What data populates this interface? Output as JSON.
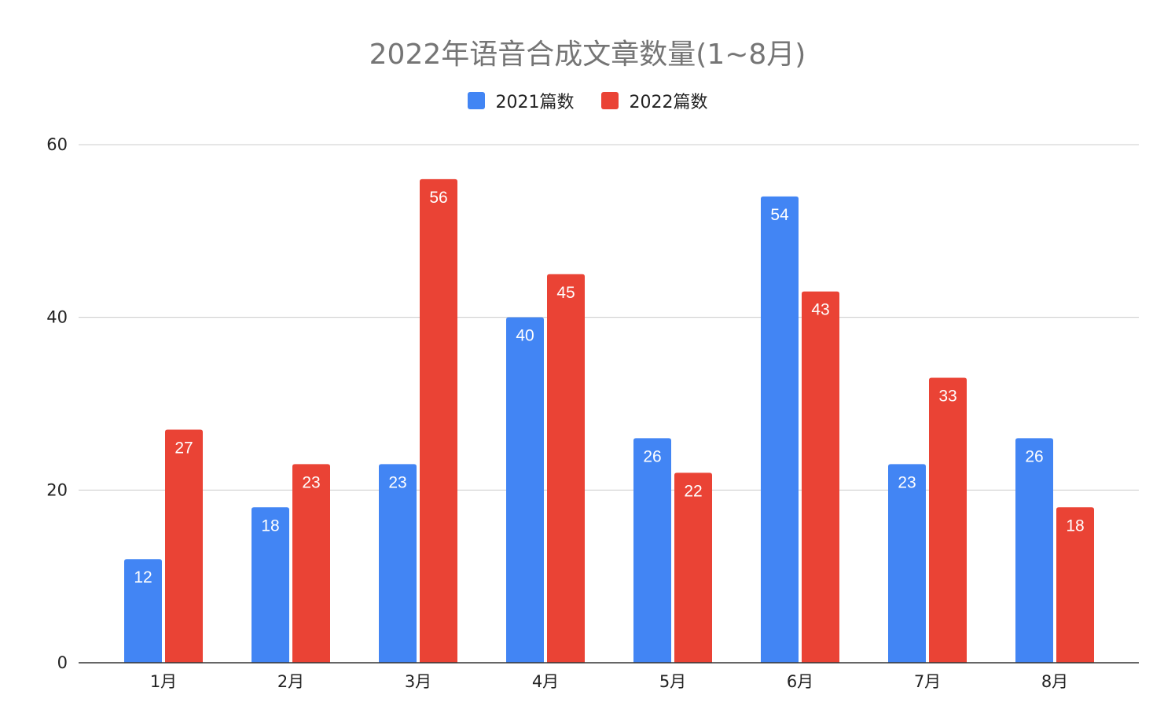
{
  "chart_data": {
    "type": "bar",
    "title": "2022年语音合成文章数量(1~8月)",
    "categories": [
      "1月",
      "2月",
      "3月",
      "4月",
      "5月",
      "6月",
      "7月",
      "8月"
    ],
    "series": [
      {
        "name": "2021篇数",
        "color": "#4285F4",
        "values": [
          12,
          18,
          23,
          40,
          26,
          54,
          23,
          26
        ]
      },
      {
        "name": "2022篇数",
        "color": "#EA4335",
        "values": [
          27,
          23,
          56,
          45,
          22,
          43,
          33,
          18
        ]
      }
    ],
    "ylim": [
      0,
      60
    ],
    "yticks": [
      0,
      20,
      40,
      60
    ],
    "grid": true,
    "legend_position": "top-center",
    "data_labels": true
  }
}
